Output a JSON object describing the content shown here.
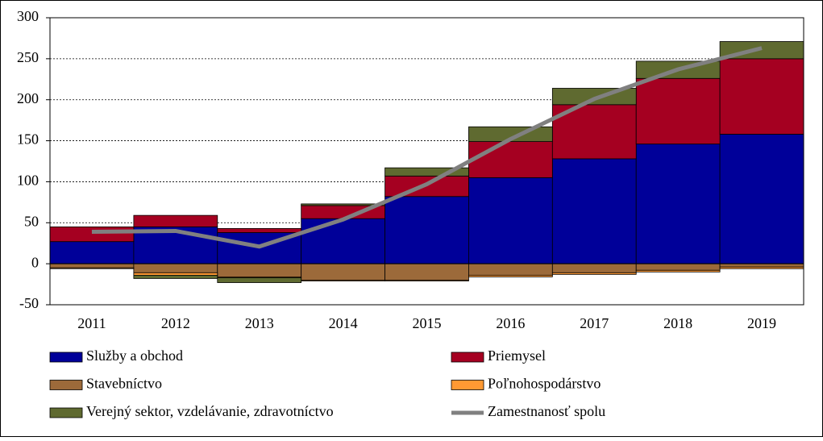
{
  "chart_data": {
    "type": "stacked-bar-line",
    "categories": [
      "2011",
      "2012",
      "2013",
      "2014",
      "2015",
      "2016",
      "2017",
      "2018",
      "2019"
    ],
    "series": [
      {
        "name": "Služby a obchod",
        "color": "#000099",
        "values": [
          27,
          45,
          38,
          55,
          82,
          105,
          128,
          146,
          158
        ]
      },
      {
        "name": "Priemysel",
        "color": "#a50021",
        "values": [
          18,
          14,
          5,
          16,
          25,
          44,
          66,
          80,
          92
        ]
      },
      {
        "name": "Stavebníctvo",
        "color": "#9c6a3a",
        "values": [
          -5,
          -11,
          -16,
          -20,
          -20,
          -14,
          -11,
          -8,
          -4
        ]
      },
      {
        "name": "Poľnohospodárstvo",
        "color": "#ff9933",
        "values": [
          -1,
          -3,
          -1,
          -1,
          -1,
          -2,
          -2,
          -2,
          -2
        ]
      },
      {
        "name": "Verejný sektor, vzdelávanie, zdravotníctvo",
        "color": "#5f6a30",
        "values": [
          0,
          -4,
          -6,
          2,
          10,
          18,
          20,
          21,
          21
        ]
      },
      {
        "name": "Zamestnanosť spolu",
        "type": "line",
        "color": "#808080",
        "values": [
          39,
          40,
          21,
          54,
          97,
          152,
          201,
          237,
          263
        ]
      }
    ],
    "ylim": [
      -50,
      300
    ],
    "yticks": [
      -50,
      0,
      50,
      100,
      150,
      200,
      250,
      300
    ],
    "grid": true
  }
}
